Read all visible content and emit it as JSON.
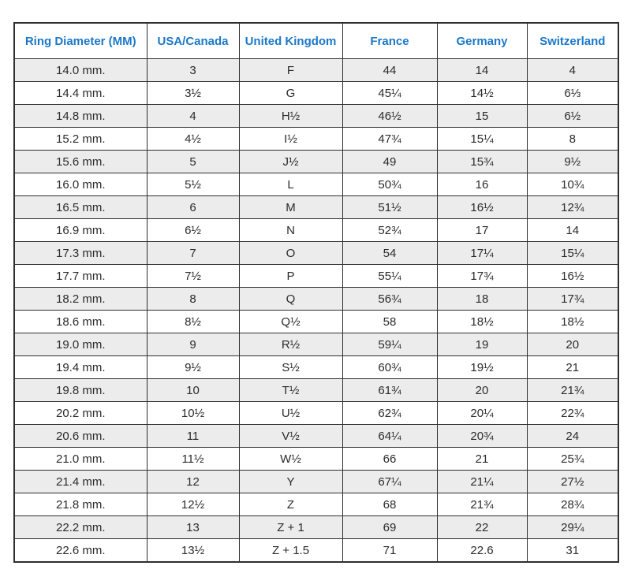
{
  "table": {
    "columns": [
      "Ring Diameter (MM)",
      "USA/Canada",
      "United Kingdom",
      "France",
      "Germany",
      "Switzerland"
    ],
    "rows": [
      [
        "14.0 mm.",
        "3",
        "F",
        "44",
        "14",
        "4"
      ],
      [
        "14.4 mm.",
        "3½",
        "G",
        "45¼",
        "14½",
        "6⅓"
      ],
      [
        "14.8 mm.",
        "4",
        "H½",
        "46½",
        "15",
        "6½"
      ],
      [
        "15.2 mm.",
        "4½",
        "I½",
        "47¾",
        "15¼",
        "8"
      ],
      [
        "15.6 mm.",
        "5",
        "J½",
        "49",
        "15¾",
        "9½"
      ],
      [
        "16.0 mm.",
        "5½",
        "L",
        "50¾",
        "16",
        "10¾"
      ],
      [
        "16.5 mm.",
        "6",
        "M",
        "51½",
        "16½",
        "12¾"
      ],
      [
        "16.9 mm.",
        "6½",
        "N",
        "52¾",
        "17",
        "14"
      ],
      [
        "17.3 mm.",
        "7",
        "O",
        "54",
        "17¼",
        "15¼"
      ],
      [
        "17.7 mm.",
        "7½",
        "P",
        "55¼",
        "17¾",
        "16½"
      ],
      [
        "18.2 mm.",
        "8",
        "Q",
        "56¾",
        "18",
        "17¾"
      ],
      [
        "18.6 mm.",
        "8½",
        "Q½",
        "58",
        "18½",
        "18½"
      ],
      [
        "19.0 mm.",
        "9",
        "R½",
        "59¼",
        "19",
        "20"
      ],
      [
        "19.4 mm.",
        "9½",
        "S½",
        "60¾",
        "19½",
        "21"
      ],
      [
        "19.8 mm.",
        "10",
        "T½",
        "61¾",
        "20",
        "21¾"
      ],
      [
        "20.2 mm.",
        "10½",
        "U½",
        "62¾",
        "20¼",
        "22¾"
      ],
      [
        "20.6 mm.",
        "11",
        "V½",
        "64¼",
        "20¾",
        "24"
      ],
      [
        "21.0 mm.",
        "11½",
        "W½",
        "66",
        "21",
        "25¾"
      ],
      [
        "21.4 mm.",
        "12",
        "Y",
        "67¼",
        "21¼",
        "27½"
      ],
      [
        "21.8 mm.",
        "12½",
        "Z",
        "68",
        "21¾",
        "28¾"
      ],
      [
        "22.2 mm.",
        "13",
        "Z + 1",
        "69",
        "22",
        "29¼"
      ],
      [
        "22.6 mm.",
        "13½",
        "Z + 1.5",
        "71",
        "22.6",
        "31"
      ]
    ],
    "colors": {
      "header_text": "#1b78c8",
      "row_alt_bg": "#ececec",
      "border": "#2e2e2e",
      "cell_text": "#2b2b2b"
    }
  }
}
